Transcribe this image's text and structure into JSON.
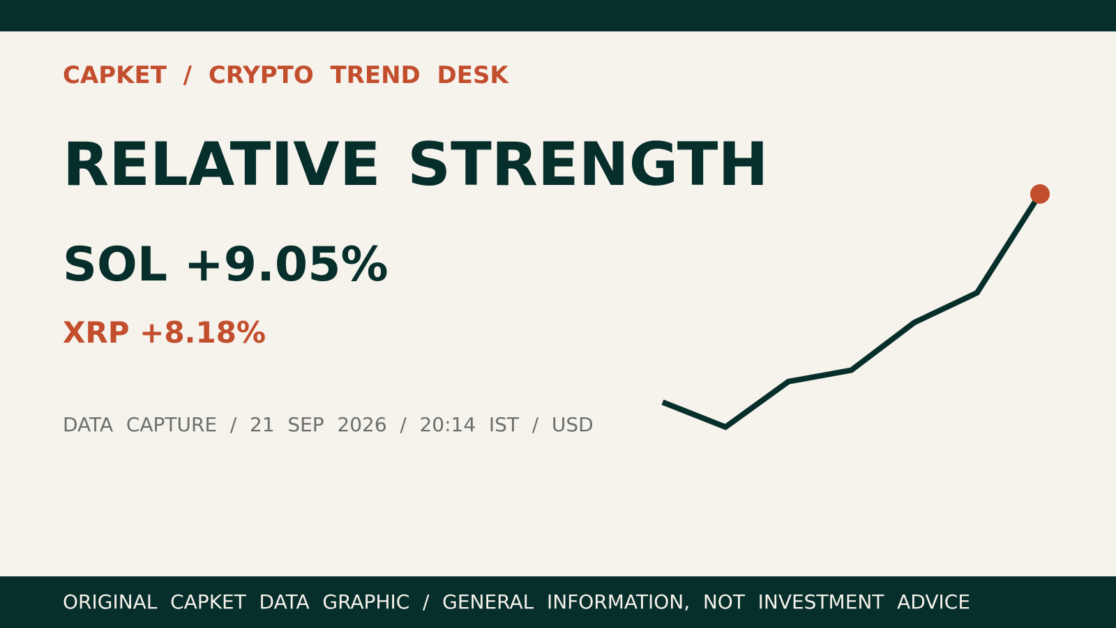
{
  "header": {
    "eyebrow": "CAPKET / CRYPTO TREND DESK",
    "title": "RELATIVE STRENGTH"
  },
  "lead": {
    "primary": "SOL +9.05%",
    "secondary": "XRP +8.18%"
  },
  "meta": "DATA CAPTURE / 21 SEP 2026 / 20:14 IST / USD",
  "footer": "ORIGINAL CAPKET DATA GRAPHIC / GENERAL INFORMATION, NOT INVESTMENT ADVICE",
  "trend": {
    "type": "line",
    "values": [
      35,
      0,
      64,
      80,
      147,
      189,
      328
    ],
    "ylim": [
      0,
      328
    ],
    "color": "#062e2a",
    "end_color": "#c24e2e"
  }
}
